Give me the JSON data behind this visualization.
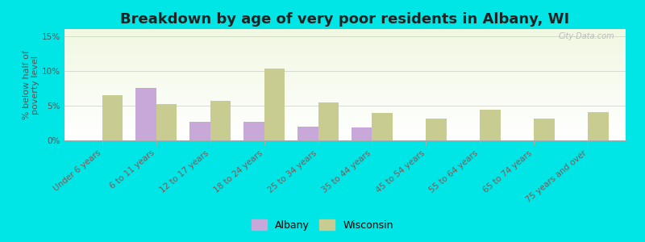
{
  "title": "Breakdown by age of very poor residents in Albany, WI",
  "ylabel": "% below half of\npoverty level",
  "categories": [
    "Under 6 years",
    "6 to 11 years",
    "12 to 17 years",
    "18 to 24 years",
    "25 to 34 years",
    "35 to 44 years",
    "45 to 54 years",
    "55 to 64 years",
    "65 to 74 years",
    "75 years and over"
  ],
  "albany_values": [
    0,
    7.5,
    2.7,
    2.7,
    2.0,
    1.8,
    0,
    0,
    0,
    0
  ],
  "wisconsin_values": [
    6.5,
    5.2,
    5.7,
    10.3,
    5.5,
    4.0,
    3.1,
    4.4,
    3.1,
    4.1
  ],
  "albany_color": "#c8a8d8",
  "wisconsin_color": "#c8cc90",
  "background_outer": "#00e5e5",
  "ylim": [
    0,
    16
  ],
  "yticks": [
    0,
    5,
    10,
    15
  ],
  "ytick_labels": [
    "0%",
    "5%",
    "10%",
    "15%"
  ],
  "bar_width": 0.38,
  "title_fontsize": 13,
  "axis_label_fontsize": 8,
  "tick_fontsize": 7.5,
  "legend_fontsize": 9,
  "watermark": "City-Data.com"
}
